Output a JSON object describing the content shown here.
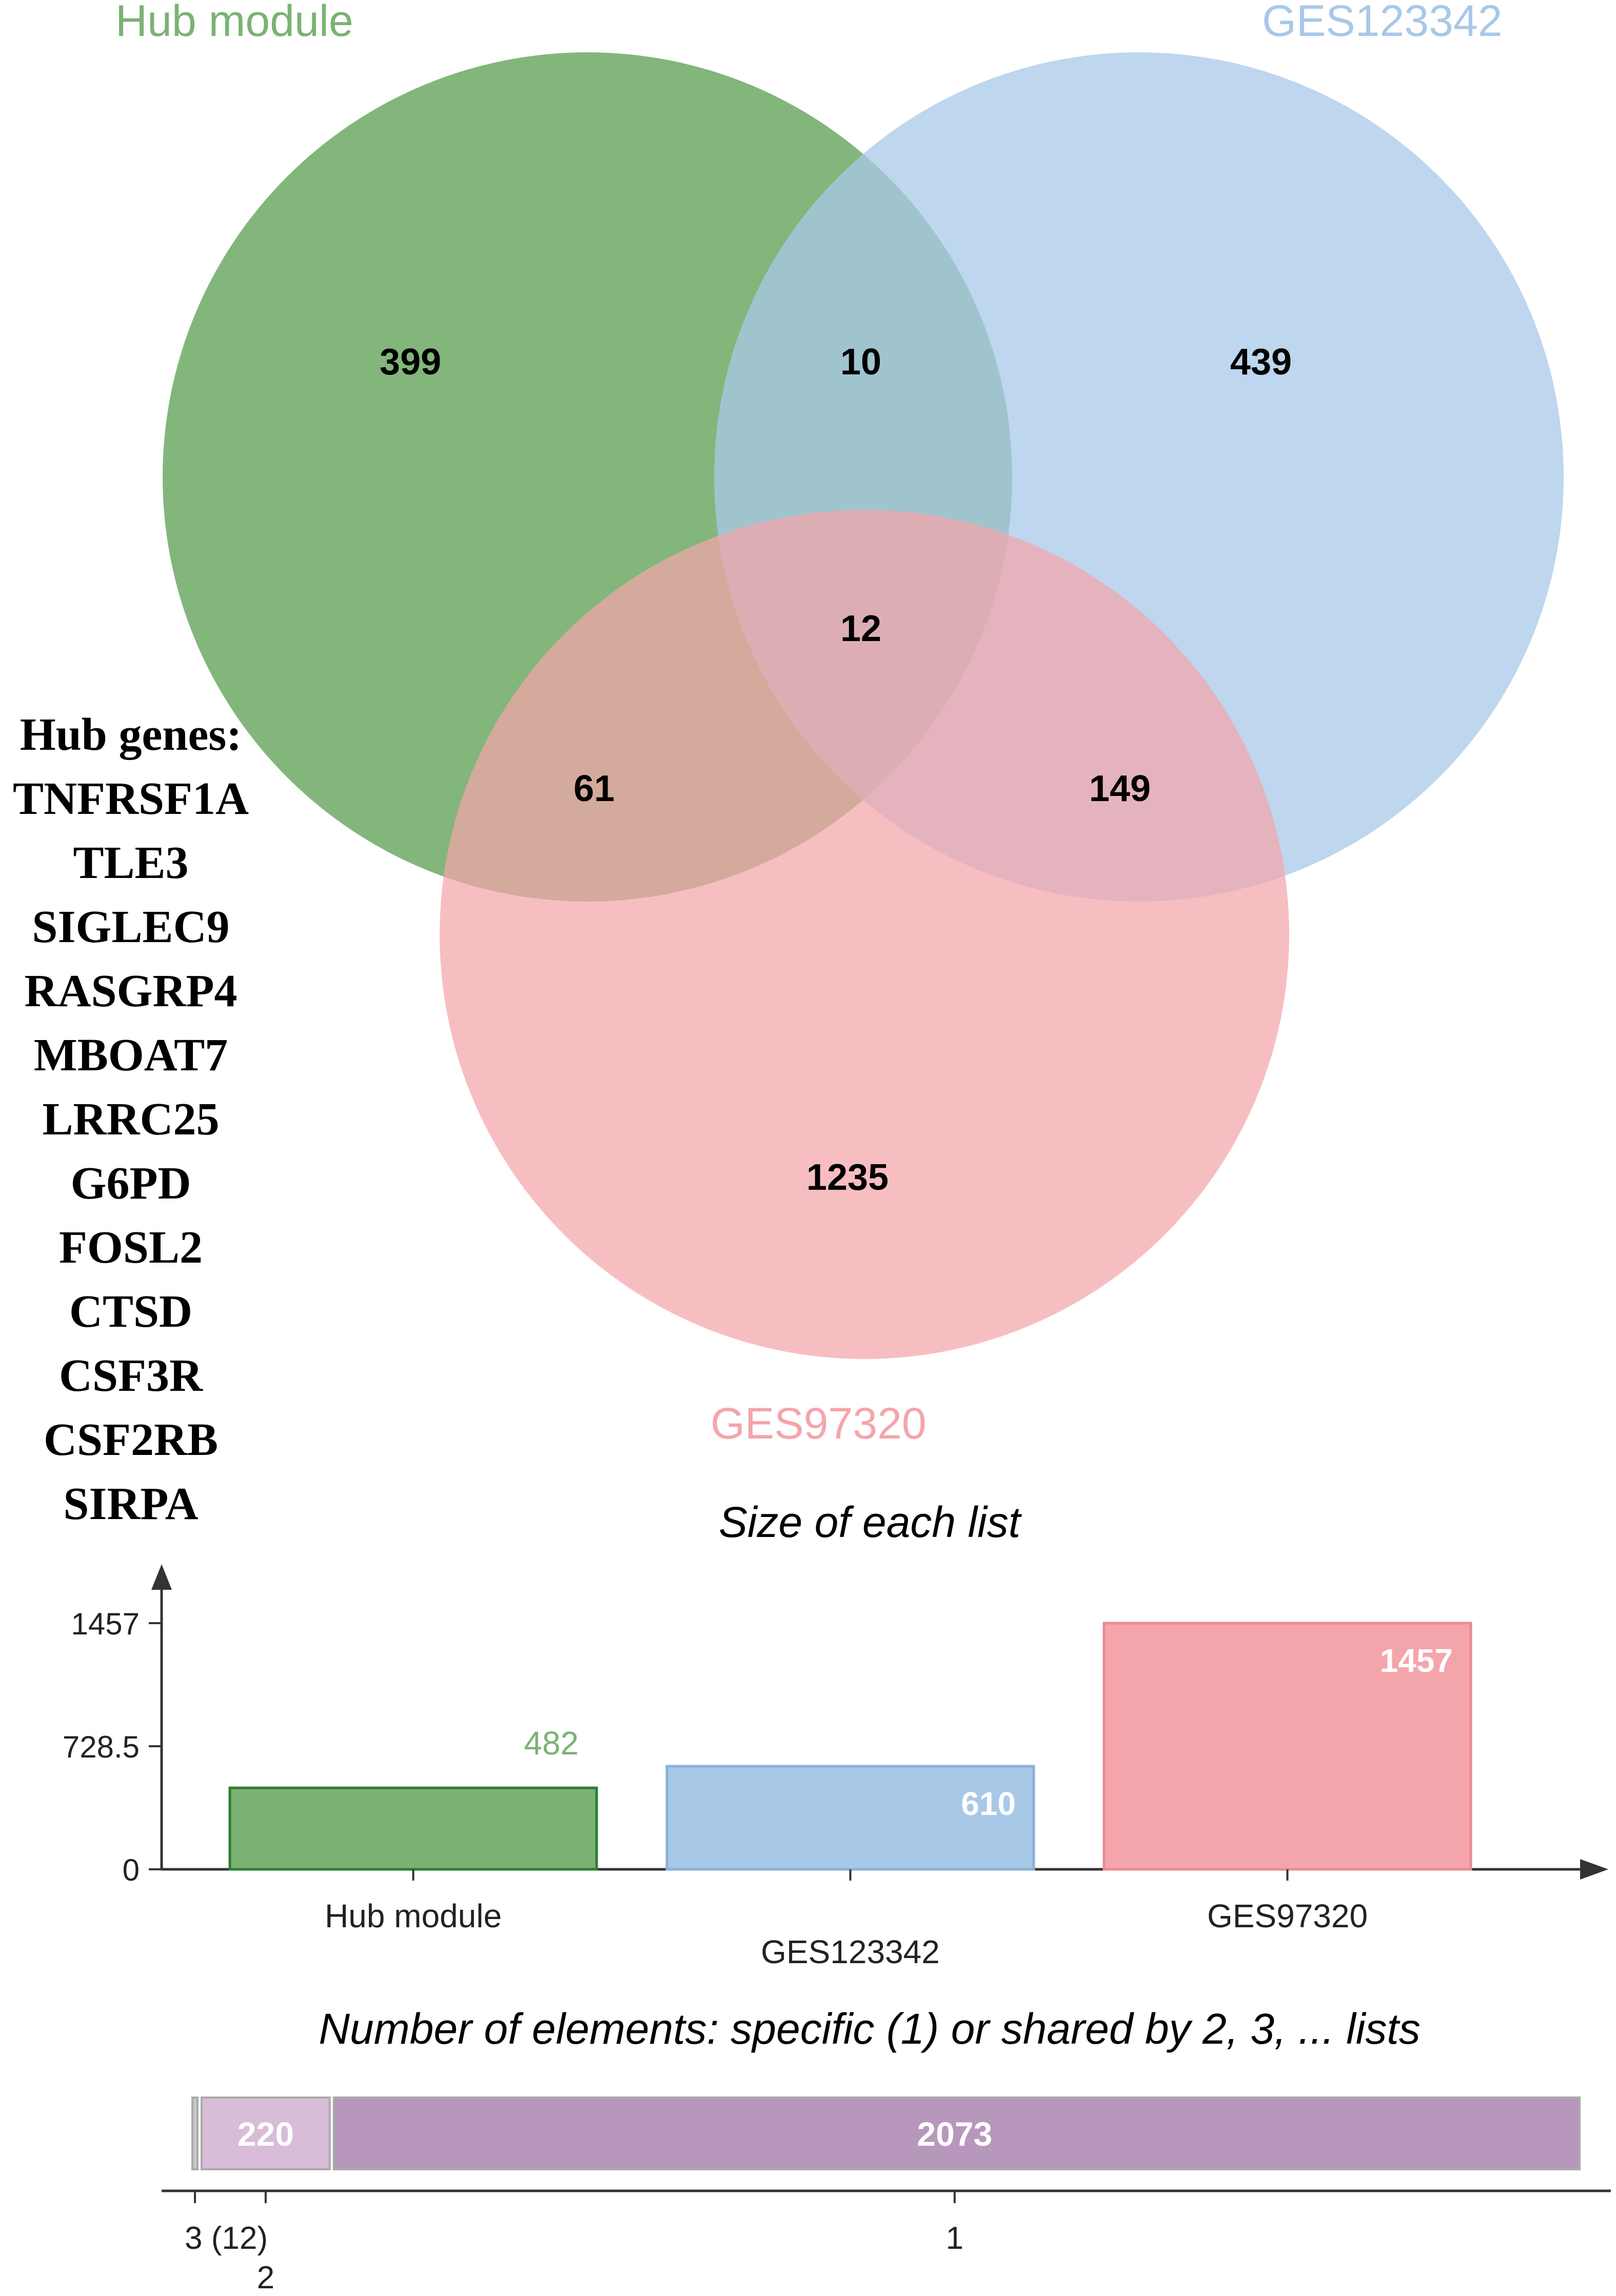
{
  "venn": {
    "sets": [
      {
        "name": "Hub module",
        "color": "#7bb274"
      },
      {
        "name": "GES123342",
        "color": "#a8c8e8"
      },
      {
        "name": "GES97320",
        "color": "#f4a5ab"
      }
    ],
    "regions": {
      "hub_only": "399",
      "ges123342_only": "439",
      "ges97320_only": "1235",
      "hub_ges123342": "10",
      "hub_ges97320": "61",
      "ges123342_ges97320": "149",
      "all_three": "12"
    }
  },
  "hub_genes": {
    "title": "Hub genes:",
    "genes": [
      "TNFRSF1A",
      "TLE3",
      "SIGLEC9",
      "RASGRP4",
      "MBOAT7",
      "LRRC25",
      "G6PD",
      "FOSL2",
      "CTSD",
      "CSF3R",
      "CSF2RB",
      "SIRPA"
    ]
  },
  "chart_data": [
    {
      "type": "bar",
      "title": "Size of each list",
      "categories": [
        "Hub module",
        "GES123342",
        "GES97320"
      ],
      "values": [
        482,
        610,
        1457
      ],
      "value_labels": [
        "482",
        "610",
        "1457"
      ],
      "colors": [
        "#7bb274",
        "#a8c8e8",
        "#f4a5ab"
      ],
      "border_colors": [
        "#2e7d32",
        "#8ab0d8",
        "#e88b93"
      ],
      "yticks": [
        "0",
        "728.5",
        "1457"
      ],
      "ylim": [
        0,
        1457
      ]
    },
    {
      "type": "bar",
      "orientation": "horizontal-stacked",
      "title": "Number of elements: specific (1) or shared by 2, 3, ... lists",
      "segments": [
        {
          "label": "3 (12)",
          "value": 12,
          "text": "",
          "color": "#c7c7c7"
        },
        {
          "label": "2",
          "value": 220,
          "text": "220",
          "color": "#d8bcd8"
        },
        {
          "label": "1",
          "value": 2073,
          "text": "2073",
          "color": "#b897bc"
        }
      ]
    }
  ]
}
